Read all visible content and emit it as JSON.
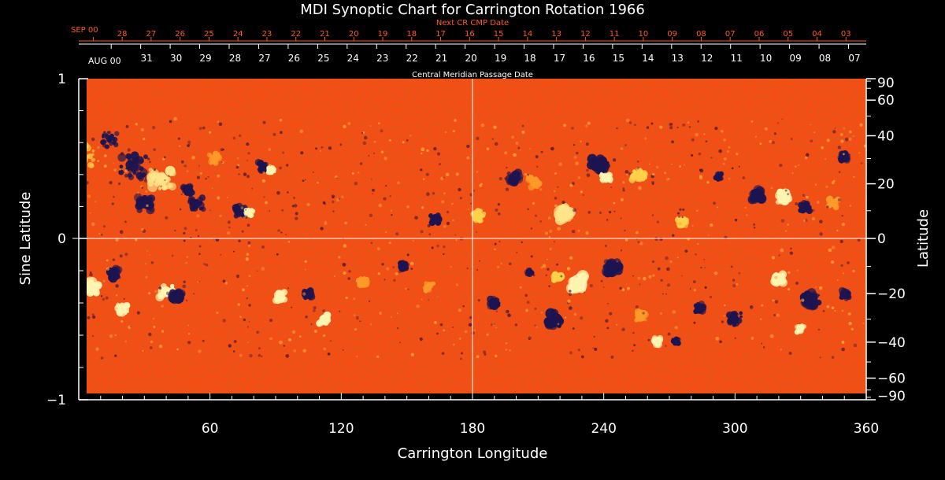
{
  "chart_data": {
    "type": "heatmap",
    "title": "MDI Synoptic Chart for Carrington Rotation 1966",
    "xlabel": "Carrington Longitude",
    "ylabel_left": "Sine Latitude",
    "ylabel_right": "Latitude",
    "xlim": [
      0,
      360
    ],
    "ylim": [
      -1,
      1
    ],
    "x_ticks": [
      60,
      120,
      180,
      240,
      300,
      360
    ],
    "y_ticks_left": [
      -1,
      0,
      1
    ],
    "y_tick_labels_left": [
      "−1",
      "0",
      "1"
    ],
    "y_ticks_right_latitude": [
      90,
      60,
      40,
      20,
      0,
      -20,
      -40,
      -60,
      -90
    ],
    "y_tick_labels_right": [
      "90",
      "60",
      "40",
      "20",
      "0",
      "−20",
      "−40",
      "−60",
      "−90"
    ],
    "crosshair": {
      "longitude": 180,
      "sine_latitude": 0
    },
    "top_axis_next": {
      "title": "Next CR CMP Date",
      "start_label": "SEP 00",
      "days": [
        "28",
        "27",
        "26",
        "25",
        "24",
        "23",
        "22",
        "21",
        "20",
        "19",
        "18",
        "17",
        "16",
        "15",
        "14",
        "13",
        "12",
        "11",
        "10",
        "09",
        "08",
        "07",
        "06",
        "05",
        "04",
        "03"
      ]
    },
    "top_axis_cmp": {
      "title": "Central Meridian Passage Date",
      "start_label": "AUG 00",
      "days": [
        "31",
        "30",
        "29",
        "28",
        "27",
        "26",
        "25",
        "24",
        "23",
        "22",
        "21",
        "20",
        "19",
        "18",
        "17",
        "16",
        "15",
        "14",
        "13",
        "12",
        "11",
        "10",
        "09",
        "08",
        "07"
      ]
    },
    "colorscale": [
      "#1c1450",
      "#8c1e0a",
      "#ff4a10",
      "#ff9a28",
      "#fff4b0"
    ],
    "background_color": "#ff4a10"
  }
}
